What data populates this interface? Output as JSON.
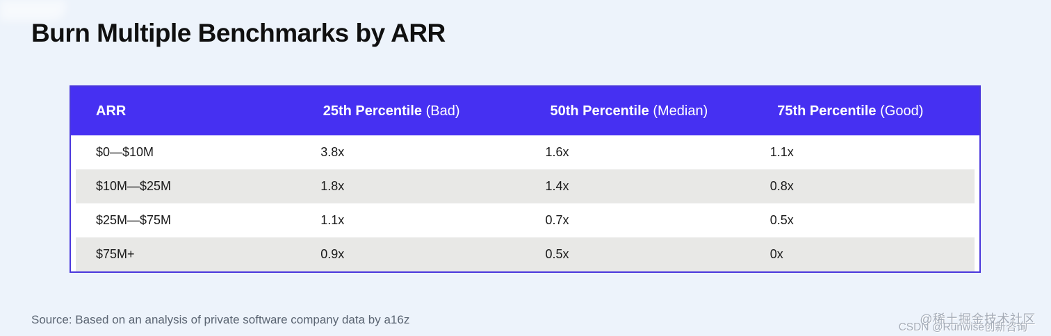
{
  "page": {
    "title": "Burn Multiple Benchmarks by ARR",
    "source": "Source: Based on an analysis of private software company data by a16z"
  },
  "colors": {
    "page_bg": "#edf3fb",
    "header_bg": "#4630f2",
    "table_border": "#4936dc",
    "row_alt_bg": "#e8e8e6",
    "row_bg": "#ffffff",
    "title_color": "#101010",
    "cell_color": "#1a1a1a",
    "header_text": "#ffffff",
    "source_color": "#5a6472",
    "watermark_color": "#a6adb8"
  },
  "chart_data": {
    "type": "table",
    "title": "Burn Multiple Benchmarks by ARR",
    "columns": [
      {
        "label": "ARR",
        "qualifier": ""
      },
      {
        "label": "25th Percentile",
        "qualifier": "(Bad)"
      },
      {
        "label": "50th Percentile",
        "qualifier": "(Median)"
      },
      {
        "label": "75th Percentile",
        "qualifier": "(Good)"
      }
    ],
    "rows": [
      {
        "arr": "$0—$10M",
        "values": [
          "3.8x",
          "1.6x",
          "1.1x"
        ]
      },
      {
        "arr": "$10M—$25M",
        "values": [
          "1.8x",
          "1.4x",
          "0.8x"
        ]
      },
      {
        "arr": "$25M—$75M",
        "values": [
          "1.1x",
          "0.7x",
          "0.5x"
        ]
      },
      {
        "arr": "$75M+",
        "values": [
          "0.9x",
          "0.5x",
          "0x"
        ]
      }
    ]
  },
  "watermark": {
    "line1": "@稀土掘金技术社区",
    "line2": "CSDN @Runwise创新咨询"
  }
}
